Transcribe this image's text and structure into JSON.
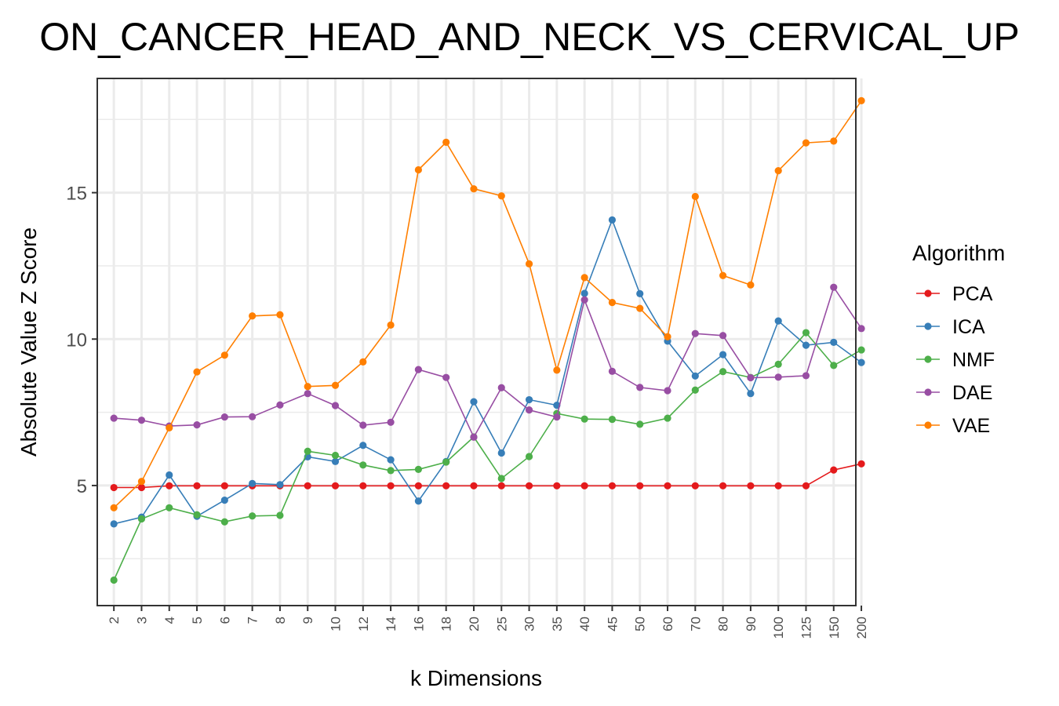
{
  "chart_data": {
    "type": "line",
    "title": "ON_CANCER_HEAD_AND_NECK_VS_CERVICAL_UP",
    "xlabel": "k Dimensions",
    "ylabel": "Absolute Value Z Score",
    "categories": [
      "2",
      "3",
      "4",
      "5",
      "6",
      "7",
      "8",
      "9",
      "10",
      "12",
      "14",
      "16",
      "18",
      "20",
      "25",
      "30",
      "35",
      "40",
      "45",
      "50",
      "60",
      "70",
      "80",
      "90",
      "100",
      "125",
      "150",
      "200"
    ],
    "ylim": [
      0.9,
      18.9
    ],
    "yticks": [
      5,
      10,
      15
    ],
    "grid": true,
    "legend": {
      "title": "Algorithm",
      "position": "right"
    },
    "series": [
      {
        "name": "PCA",
        "color": "#e41a1c",
        "values": [
          4.93,
          4.93,
          4.99,
          4.99,
          4.99,
          4.99,
          4.99,
          4.99,
          4.99,
          4.99,
          4.99,
          4.99,
          4.99,
          4.99,
          4.99,
          4.99,
          4.99,
          4.99,
          4.99,
          4.99,
          4.99,
          4.99,
          4.99,
          4.99,
          4.99,
          4.99,
          5.53,
          5.74
        ]
      },
      {
        "name": "ICA",
        "color": "#377eb8",
        "values": [
          3.69,
          3.92,
          5.36,
          3.95,
          4.5,
          5.07,
          5.03,
          5.98,
          5.82,
          6.37,
          5.88,
          4.47,
          5.82,
          7.86,
          6.11,
          7.93,
          7.74,
          11.56,
          14.07,
          11.55,
          9.93,
          8.74,
          9.47,
          8.14,
          10.62,
          9.79,
          9.89,
          9.2
        ]
      },
      {
        "name": "NMF",
        "color": "#4daf4a",
        "values": [
          1.77,
          3.86,
          4.24,
          4.0,
          3.76,
          3.96,
          3.98,
          6.17,
          6.03,
          5.7,
          5.51,
          5.55,
          5.8,
          6.66,
          5.24,
          5.99,
          7.46,
          7.27,
          7.26,
          7.09,
          7.3,
          8.26,
          8.89,
          8.69,
          9.14,
          10.22,
          9.1,
          9.63
        ]
      },
      {
        "name": "DAE",
        "color": "#984ea3",
        "values": [
          7.3,
          7.23,
          7.03,
          7.07,
          7.34,
          7.35,
          7.75,
          8.14,
          7.73,
          7.06,
          7.16,
          8.96,
          8.69,
          6.65,
          8.34,
          7.58,
          7.34,
          11.34,
          8.9,
          8.35,
          8.24,
          10.19,
          10.12,
          8.68,
          8.7,
          8.75,
          11.77,
          10.36
        ]
      },
      {
        "name": "VAE",
        "color": "#ff7f00",
        "values": [
          4.24,
          5.14,
          6.97,
          8.88,
          9.45,
          10.79,
          10.83,
          8.38,
          8.42,
          9.22,
          10.48,
          15.78,
          16.72,
          15.13,
          14.89,
          12.57,
          8.94,
          12.1,
          11.25,
          11.05,
          10.08,
          14.87,
          12.17,
          11.85,
          15.75,
          16.7,
          16.76,
          18.14
        ]
      }
    ]
  }
}
